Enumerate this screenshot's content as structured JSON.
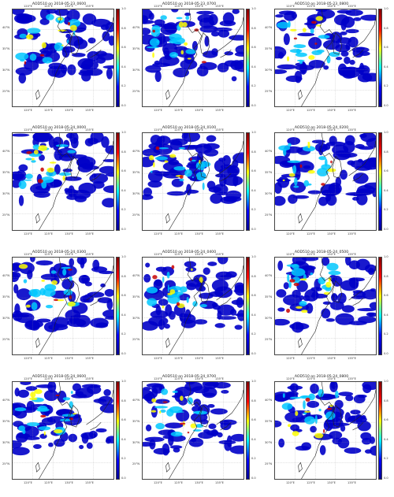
{
  "panels": [
    {
      "title": "AOD510 on 2018-05-23_0600"
    },
    {
      "title": "AOD510 on 2018-05-23_0700"
    },
    {
      "title": "AOD510 on 2018-05-23_0800"
    },
    {
      "title": "AOD510 on 2018-05-24_0000"
    },
    {
      "title": "AOD510 on 2018-05-24_0100"
    },
    {
      "title": "AOD510 on 2018-05-24_0200"
    },
    {
      "title": "AOD510 on 2018-05-24_0300"
    },
    {
      "title": "AOD510 on 2018-05-24_0400"
    },
    {
      "title": "AOD510 on 2018-05-24_0500"
    },
    {
      "title": "AOD510 on 2018-05-24_0600"
    },
    {
      "title": "AOD510 on 2018-05-24_0700"
    },
    {
      "title": "AOD510 on 2018-05-24_0800"
    }
  ],
  "lat_labels": [
    "40°N",
    "35°N",
    "30°N",
    "25°N"
  ],
  "lon_labels": [
    "120°E",
    "125°E",
    "130°E",
    "135°E"
  ],
  "colorbar_ticks": [
    "1.0",
    "0.8",
    "0.6",
    "0.4",
    "0.2",
    "0.0"
  ],
  "colors": {
    "low": "#0000c8",
    "mid": "#00c8ff",
    "high": "#ffff00",
    "max": "#c80000"
  }
}
